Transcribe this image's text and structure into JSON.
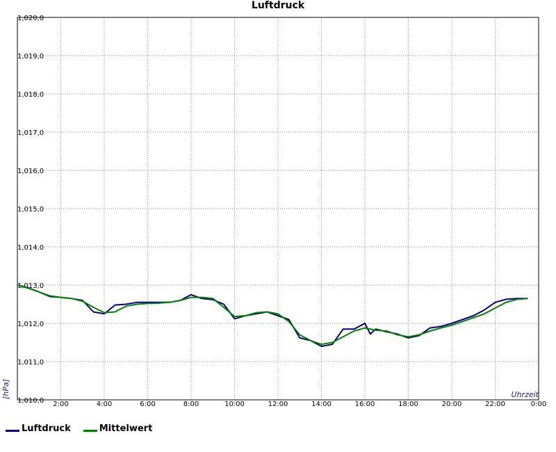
{
  "chart_data": {
    "type": "line",
    "title": "Luftdruck",
    "ylabel": "[hPa]",
    "xlabel": "Uhrzeit",
    "ylim": [
      1010.0,
      1020.0
    ],
    "xlim": [
      0,
      24
    ],
    "y_ticks": [
      "1,010,0",
      "1,011,0",
      "1,012,0",
      "1,013,0",
      "1,014,0",
      "1,015,0",
      "1,016,0",
      "1,017,0",
      "1,018,0",
      "1,019,0",
      "1,020,0"
    ],
    "x_ticks": [
      "2:00",
      "4:00",
      "6:00",
      "8:00",
      "10:00",
      "12:00",
      "14:00",
      "16:00",
      "18:00",
      "20:00",
      "22:00",
      "0:00"
    ],
    "grid": true,
    "legend_position": "bottom-left",
    "series": [
      {
        "name": "Luftdruck",
        "color": "#00007f",
        "x": [
          0,
          0.5,
          1,
          1.5,
          2,
          2.5,
          3,
          3.5,
          4,
          4.5,
          5,
          5.5,
          6,
          6.5,
          7,
          7.5,
          8,
          8.5,
          9,
          9.5,
          10,
          10.5,
          11,
          11.5,
          12,
          12.5,
          13,
          13.5,
          14,
          14.5,
          15,
          15.5,
          16,
          16.25,
          16.5,
          17,
          17.5,
          18,
          18.5,
          19,
          19.5,
          20,
          20.5,
          21,
          21.5,
          22,
          22.5,
          23,
          23.5
        ],
        "values": [
          1013.0,
          1012.93,
          1012.82,
          1012.7,
          1012.68,
          1012.65,
          1012.6,
          1012.3,
          1012.25,
          1012.48,
          1012.5,
          1012.55,
          1012.55,
          1012.55,
          1012.55,
          1012.6,
          1012.75,
          1012.65,
          1012.62,
          1012.5,
          1012.12,
          1012.2,
          1012.25,
          1012.3,
          1012.2,
          1012.1,
          1011.62,
          1011.55,
          1011.4,
          1011.45,
          1011.85,
          1011.85,
          1012.0,
          1011.72,
          1011.85,
          1011.78,
          1011.72,
          1011.62,
          1011.68,
          1011.88,
          1011.92,
          1012.0,
          1012.1,
          1012.2,
          1012.35,
          1012.55,
          1012.63,
          1012.65,
          1012.65
        ]
      },
      {
        "name": "Mittelwert",
        "color": "#008000",
        "x": [
          0,
          0.5,
          1,
          1.5,
          2,
          2.5,
          3,
          3.5,
          4,
          4.5,
          5,
          5.5,
          6,
          6.5,
          7,
          7.5,
          8,
          8.5,
          9,
          9.5,
          10,
          10.5,
          11,
          11.5,
          12,
          12.5,
          13,
          13.5,
          14,
          14.5,
          15,
          15.5,
          16,
          16.5,
          17,
          17.5,
          18,
          18.5,
          19,
          19.5,
          20,
          20.5,
          21,
          21.5,
          22,
          22.5,
          23,
          23.5
        ],
        "values": [
          1013.0,
          1012.92,
          1012.82,
          1012.72,
          1012.68,
          1012.65,
          1012.58,
          1012.42,
          1012.28,
          1012.3,
          1012.45,
          1012.5,
          1012.52,
          1012.53,
          1012.55,
          1012.6,
          1012.68,
          1012.68,
          1012.65,
          1012.42,
          1012.18,
          1012.2,
          1012.28,
          1012.3,
          1012.25,
          1012.05,
          1011.7,
          1011.55,
          1011.45,
          1011.5,
          1011.65,
          1011.8,
          1011.88,
          1011.82,
          1011.8,
          1011.7,
          1011.65,
          1011.7,
          1011.8,
          1011.88,
          1011.95,
          1012.05,
          1012.15,
          1012.25,
          1012.4,
          1012.55,
          1012.63,
          1012.65
        ]
      }
    ]
  }
}
